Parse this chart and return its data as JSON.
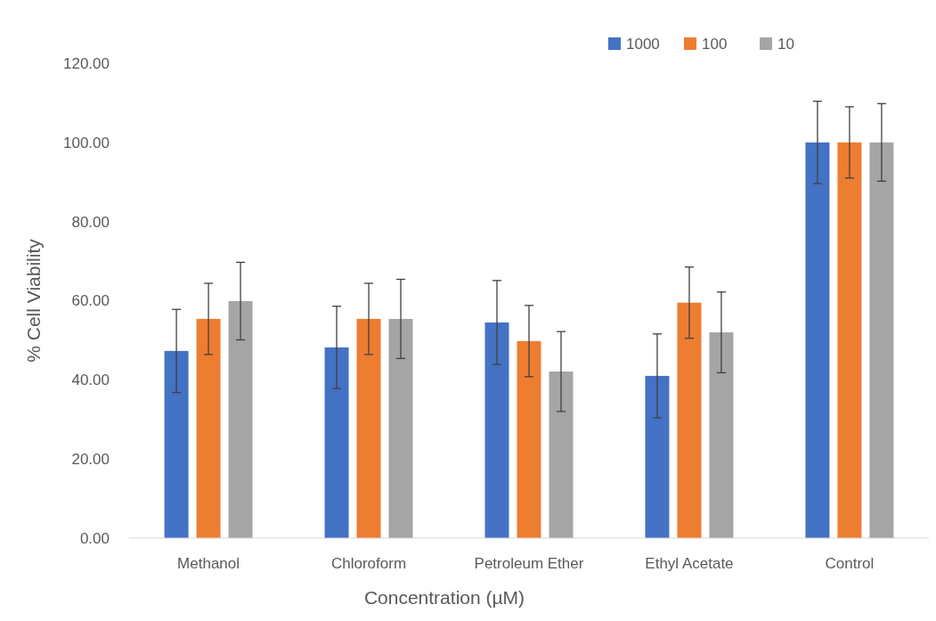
{
  "chart_data": {
    "type": "bar",
    "xlabel": "Concentration (µM)",
    "ylabel": "% Cell Viability",
    "categories": [
      "Methanol",
      "Chloroform",
      "Petroleum Ether",
      "Ethyl Acetate",
      "Control"
    ],
    "series": [
      {
        "name": "1000",
        "color": "#4472c4",
        "values": [
          47.3,
          48.2,
          54.5,
          41,
          100
        ],
        "errors": [
          10.5,
          10.4,
          10.6,
          10.6,
          10.4
        ]
      },
      {
        "name": "100",
        "color": "#ed7d31",
        "values": [
          55.4,
          55.4,
          49.8,
          59.5,
          100
        ],
        "errors": [
          9,
          9,
          9,
          9,
          9
        ]
      },
      {
        "name": "10",
        "color": "#a5a5a5",
        "values": [
          59.9,
          55.4,
          42.1,
          52,
          100
        ],
        "errors": [
          9.8,
          10,
          10.1,
          10.2,
          9.8
        ]
      }
    ],
    "ylim": [
      0,
      120
    ],
    "yticks": [
      {
        "value": 0,
        "label": "0.00"
      },
      {
        "value": 20,
        "label": "20.00"
      },
      {
        "value": 40,
        "label": "40.00"
      },
      {
        "value": 60,
        "label": "60.00"
      },
      {
        "value": 80,
        "label": "80.00"
      },
      {
        "value": 100,
        "label": "100.00"
      },
      {
        "value": 120,
        "label": "120.00"
      }
    ],
    "grid": false,
    "legend": "top right"
  }
}
